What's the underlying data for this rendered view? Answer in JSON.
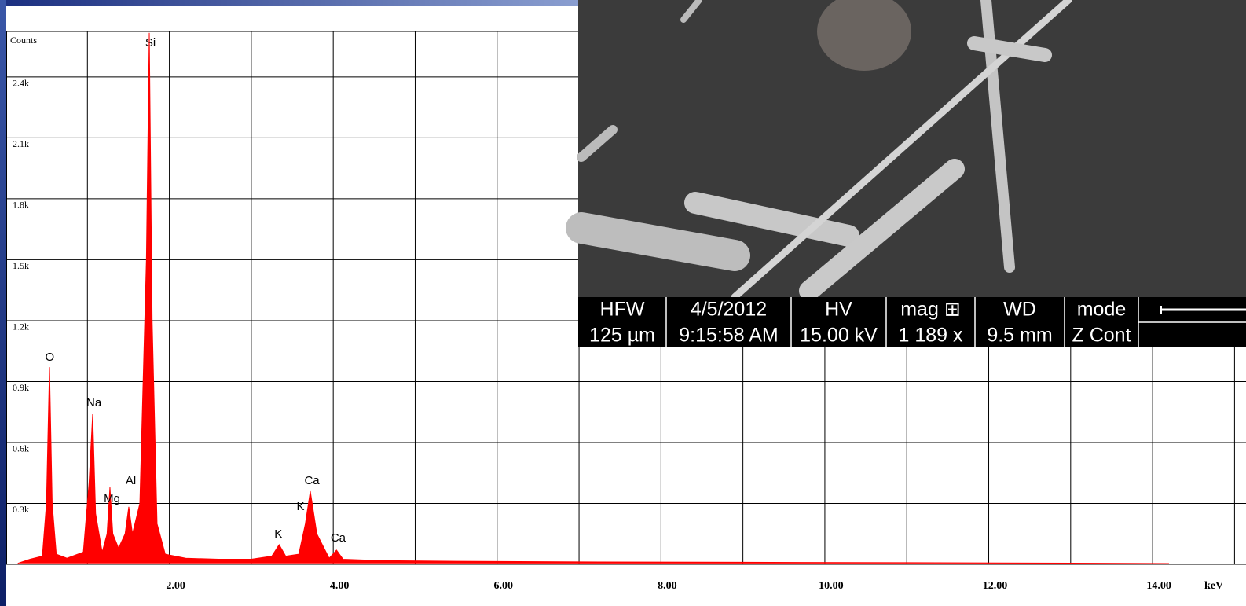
{
  "chart_data": {
    "type": "area",
    "y_axis_label": "Counts",
    "x_axis_label": "keV",
    "x": [
      0.15,
      0.3,
      0.45,
      0.5,
      0.537,
      0.57,
      0.62,
      0.75,
      0.95,
      1.02,
      1.064,
      1.1,
      1.18,
      1.24,
      1.275,
      1.31,
      1.38,
      1.46,
      1.505,
      1.55,
      1.64,
      1.72,
      1.755,
      1.79,
      1.85,
      1.95,
      2.2,
      2.6,
      3.0,
      3.25,
      3.34,
      3.42,
      3.58,
      3.66,
      3.72,
      3.8,
      3.95,
      4.04,
      4.12,
      4.6,
      5.5,
      7,
      9,
      11,
      13,
      14.2
    ],
    "values": [
      5,
      25,
      40,
      300,
      971,
      300,
      50,
      30,
      60,
      400,
      739,
      250,
      60,
      150,
      379,
      150,
      80,
      150,
      283,
      150,
      300,
      1500,
      2617,
      1200,
      200,
      50,
      30,
      25,
      25,
      40,
      97,
      40,
      50,
      200,
      360,
      150,
      30,
      70,
      25,
      18,
      15,
      12,
      10,
      8,
      6,
      4
    ],
    "color": "#ff0000",
    "xlim": [
      0,
      15.14
    ],
    "ylim": [
      0,
      2624
    ],
    "xticks": [
      {
        "value": 2,
        "label": "2.00"
      },
      {
        "value": 4,
        "label": "4.00"
      },
      {
        "value": 6,
        "label": "6.00"
      },
      {
        "value": 8,
        "label": "8.00"
      },
      {
        "value": 10,
        "label": "10.00"
      },
      {
        "value": 12,
        "label": "12.00"
      },
      {
        "value": 14,
        "label": "14.00"
      }
    ],
    "xgrid": [
      1,
      2,
      3,
      4,
      5,
      6,
      7,
      8,
      9,
      10,
      11,
      12,
      13,
      14,
      15
    ],
    "yticks": [
      {
        "value": 300,
        "label": "0.3k"
      },
      {
        "value": 600,
        "label": "0.6k"
      },
      {
        "value": 900,
        "label": "0.9k"
      },
      {
        "value": 1200,
        "label": "1.2k"
      },
      {
        "value": 1500,
        "label": "1.5k"
      },
      {
        "value": 1800,
        "label": "1.8k"
      },
      {
        "value": 2100,
        "label": "2.1k"
      },
      {
        "value": 2400,
        "label": "2.4k"
      }
    ],
    "grid": true,
    "annotations": [
      {
        "text": "O",
        "x": 0.54,
        "y": 1018
      },
      {
        "text": "Na",
        "x": 1.08,
        "y": 794
      },
      {
        "text": "Mg",
        "x": 1.3,
        "y": 321
      },
      {
        "text": "Al",
        "x": 1.53,
        "y": 410
      },
      {
        "text": "Si",
        "x": 1.77,
        "y": 2566
      },
      {
        "text": "K",
        "x": 3.33,
        "y": 147
      },
      {
        "text": "K",
        "x": 3.6,
        "y": 283
      },
      {
        "text": "Ca",
        "x": 3.74,
        "y": 410
      },
      {
        "text": "Ca",
        "x": 4.06,
        "y": 128
      }
    ]
  },
  "sem_info": {
    "headers": [
      "HFW",
      "4/5/2012",
      "HV",
      "mag ⊞",
      "WD",
      "mode"
    ],
    "values": [
      "125 µm",
      "9:15:58 AM",
      "15.00 kV",
      "1 189 x",
      "9.5 mm",
      "Z Cont"
    ]
  }
}
